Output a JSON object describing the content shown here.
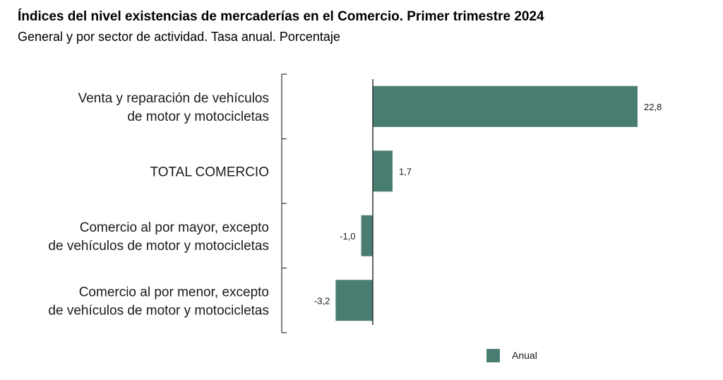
{
  "chart_data": {
    "type": "bar",
    "orientation": "horizontal",
    "title": "Índices del nivel existencias de mercaderías en el Comercio. Primer trimestre 2024",
    "subtitle": "General y por sector de actividad. Tasa anual. Porcentaje",
    "categories": [
      [
        "Venta y reparación de vehículos",
        "de motor y motocicletas"
      ],
      [
        "TOTAL COMERCIO"
      ],
      [
        "Comercio al por mayor, excepto",
        "de vehículos de motor y motocicletas"
      ],
      [
        "Comercio al por menor, excepto",
        "de vehículos de motor y motocicletas"
      ]
    ],
    "series": [
      {
        "name": "Anual",
        "values": [
          22.8,
          1.7,
          -1.0,
          -3.2
        ],
        "labels": [
          "22,8",
          "1,7",
          "-1,0",
          "-3,2"
        ],
        "color": "#4a7d72"
      }
    ],
    "legend": "bottom-right",
    "grid": false
  }
}
